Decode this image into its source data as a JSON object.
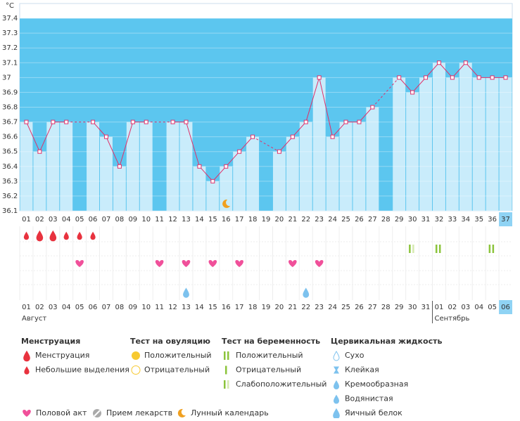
{
  "chart_data": {
    "type": "line",
    "y_label": "°C",
    "categories": [
      "01",
      "02",
      "03",
      "04",
      "05",
      "06",
      "07",
      "08",
      "09",
      "10",
      "11",
      "12",
      "13",
      "14",
      "15",
      "16",
      "17",
      "18",
      "19",
      "20",
      "21",
      "22",
      "23",
      "24",
      "25",
      "26",
      "27",
      "28",
      "29",
      "30",
      "31",
      "32",
      "33",
      "34",
      "35",
      "36",
      "37"
    ],
    "values": [
      36.7,
      36.5,
      36.7,
      36.7,
      null,
      36.7,
      36.6,
      36.4,
      36.7,
      36.7,
      null,
      36.7,
      36.7,
      36.4,
      36.3,
      36.4,
      36.5,
      36.6,
      null,
      36.5,
      36.6,
      36.7,
      37.0,
      36.6,
      36.7,
      36.7,
      36.8,
      null,
      37.0,
      36.9,
      37.0,
      37.1,
      37.0,
      37.1,
      37.0,
      37.0,
      37.0
    ],
    "ylim": [
      36.1,
      37.5
    ],
    "yticks": [
      36.1,
      36.2,
      36.3,
      36.4,
      36.5,
      36.6,
      36.7,
      36.8,
      36.9,
      37,
      37.1,
      37.2,
      37.3,
      37.4
    ],
    "grid": true,
    "line_color": "#e0306a",
    "bar_color": "#c9ecfb",
    "band_color": "#5cc6ef",
    "highlight_index": 36,
    "calendar": {
      "dates": [
        "01",
        "02",
        "03",
        "04",
        "05",
        "06",
        "07",
        "08",
        "09",
        "10",
        "11",
        "12",
        "13",
        "14",
        "15",
        "16",
        "17",
        "18",
        "19",
        "20",
        "21",
        "22",
        "23",
        "24",
        "25",
        "26",
        "27",
        "28",
        "29",
        "30",
        "31",
        "01",
        "02",
        "03",
        "04",
        "05",
        "06"
      ],
      "weekend": [
        false,
        false,
        false,
        false,
        false,
        true,
        true,
        false,
        false,
        false,
        false,
        false,
        true,
        true,
        false,
        false,
        false,
        false,
        false,
        true,
        true,
        false,
        false,
        false,
        false,
        false,
        true,
        true,
        false,
        false,
        false,
        false,
        false,
        true,
        true,
        false,
        false
      ],
      "months": [
        {
          "name": "Август",
          "start": 1
        },
        {
          "name": "Сентябрь",
          "start": 32
        }
      ]
    },
    "events": {
      "menstruation_heavy": [
        2,
        3
      ],
      "menstruation_light": [
        1,
        4,
        5,
        6
      ],
      "pregnancy_positive": [
        32,
        36
      ],
      "pregnancy_weak": [
        30
      ],
      "intercourse": [
        5,
        11,
        13,
        15,
        17,
        21,
        23
      ],
      "egg_white": [
        13,
        22
      ],
      "lunar": [
        16
      ]
    }
  },
  "legend": {
    "groups": [
      {
        "title": "Менструация",
        "items": [
          "Менструация",
          "Небольшие выделения"
        ]
      },
      {
        "title": "Тест на овуляцию",
        "items": [
          "Положительный",
          "Отрицательный"
        ]
      },
      {
        "title": "Тест на беременность",
        "items": [
          "Положительный",
          "Отрицательный",
          "Слабоположительный"
        ]
      },
      {
        "title": "Цервикальная жидкость",
        "items": [
          "Сухо",
          "Клейкая",
          "Кремообразная",
          "Водянистая",
          "Яичный белок"
        ]
      }
    ],
    "other": [
      "Половой акт",
      "Прием лекарств",
      "Лунный календарь"
    ]
  }
}
